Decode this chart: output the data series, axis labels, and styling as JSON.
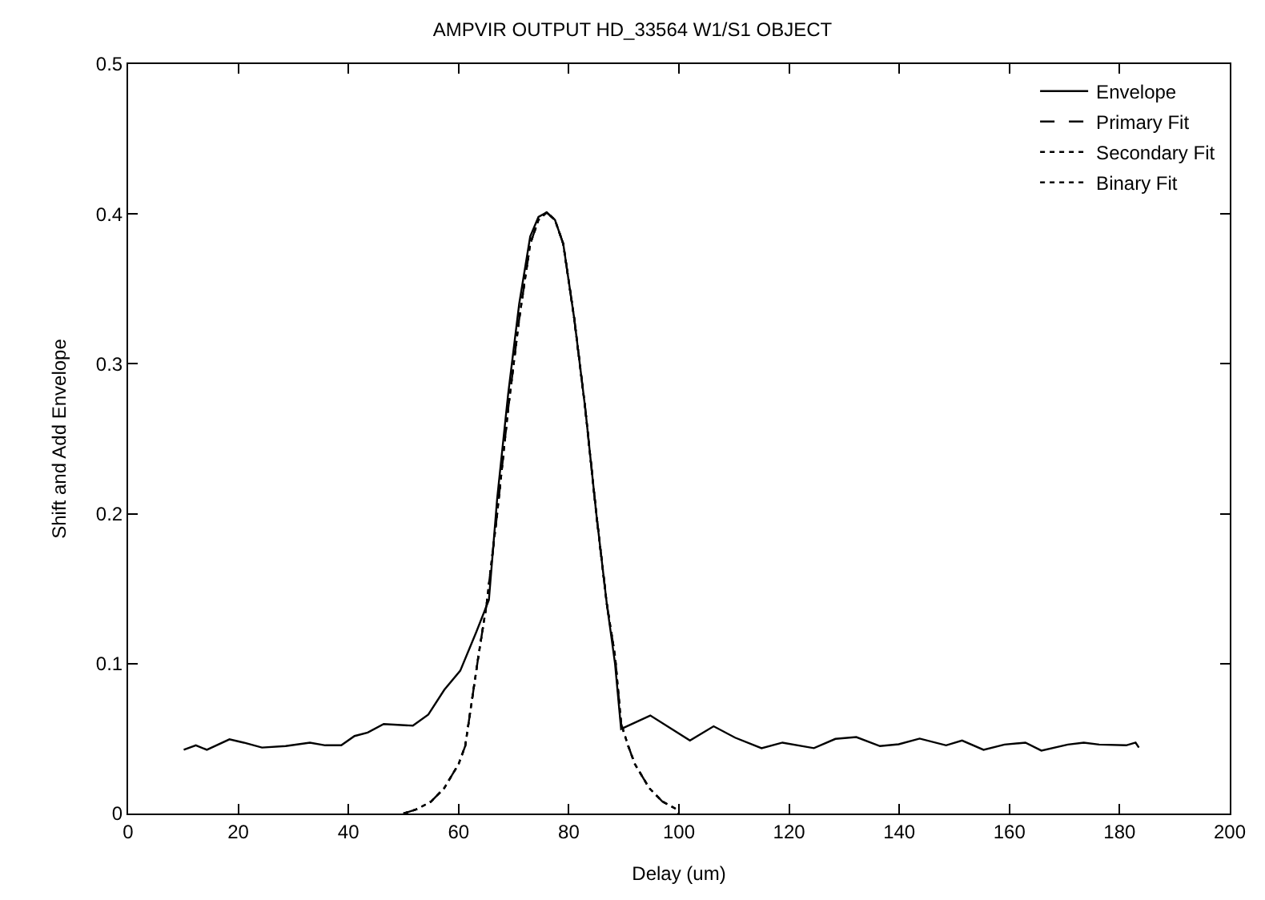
{
  "chart_data": {
    "type": "line",
    "title": "AMPVIR OUTPUT HD_33564 W1/S1 OBJECT",
    "xlabel": "Delay (um)",
    "ylabel": "Shift and Add Envelope",
    "xlim": [
      0,
      200
    ],
    "xticks": [
      0,
      20,
      40,
      60,
      80,
      100,
      120,
      140,
      160,
      180,
      200
    ],
    "ylim": [
      0,
      0.5
    ],
    "yticks": [
      0,
      0.1,
      0.2,
      0.3,
      0.4,
      0.5
    ],
    "grid": false,
    "legend": "top right",
    "marker": "none",
    "series": [
      {
        "name": "Envelope",
        "color": "#000000",
        "line_style": "solid",
        "x": [
          10.1,
          12.3,
          14.3,
          18.4,
          21,
          24.3,
          28.6,
          33,
          35.8,
          38.7,
          41.1,
          43.5,
          46.4,
          51.7,
          54.5,
          57.4,
          60.3,
          63.2,
          65.5,
          67,
          69,
          71,
          73,
          74.5,
          76,
          77.5,
          79,
          81,
          83,
          85,
          86.9,
          88.4,
          89.5,
          94.8,
          102,
          106.3,
          110.2,
          115,
          118.8,
          124.5,
          128.4,
          132.2,
          136.5,
          139.9,
          143.7,
          148.5,
          151.4,
          155.3,
          159.1,
          162.9,
          165.8,
          170.6,
          173.5,
          176.3,
          181.2,
          182.9,
          183.5
        ],
        "values": [
          0.0425,
          0.0455,
          0.0425,
          0.0495,
          0.0473,
          0.044,
          0.045,
          0.0473,
          0.0455,
          0.0455,
          0.0517,
          0.054,
          0.0597,
          0.0586,
          0.066,
          0.0825,
          0.0953,
          0.121,
          0.1425,
          0.21,
          0.28,
          0.34,
          0.385,
          0.398,
          0.401,
          0.396,
          0.38,
          0.33,
          0.27,
          0.2,
          0.14,
          0.1,
          0.0564,
          0.0654,
          0.0487,
          0.0582,
          0.0506,
          0.0436,
          0.0473,
          0.0436,
          0.0498,
          0.051,
          0.045,
          0.0462,
          0.05,
          0.0455,
          0.0487,
          0.0425,
          0.046,
          0.0473,
          0.042,
          0.046,
          0.0473,
          0.046,
          0.0455,
          0.0473,
          0.044
        ]
      },
      {
        "name": "Primary Fit",
        "color": "#000000",
        "line_style": "dashed",
        "x": [
          50,
          52.5,
          55,
          57.4,
          60,
          61.2,
          63.6,
          65.1,
          67,
          69,
          71,
          73,
          74.5,
          76,
          77.5,
          79,
          81,
          83,
          85,
          86.9,
          88.4,
          89.5,
          90.8,
          92,
          94.6,
          97,
          99.5,
          100
        ],
        "values": [
          0,
          0.003,
          0.008,
          0.017,
          0.033,
          0.045,
          0.105,
          0.14,
          0.2,
          0.27,
          0.33,
          0.38,
          0.396,
          0.401,
          0.396,
          0.38,
          0.33,
          0.27,
          0.2,
          0.14,
          0.105,
          0.06,
          0.045,
          0.033,
          0.017,
          0.008,
          0.003,
          0
        ]
      },
      {
        "name": "Secondary Fit",
        "color": "#000000",
        "line_style": "dotted",
        "x": [
          50,
          52.5,
          55,
          57.4,
          60,
          61.2,
          63.6,
          65.1,
          67,
          69,
          71,
          73,
          74.5,
          76,
          77.5,
          79,
          81,
          83,
          85,
          86.9,
          88.4,
          89.5,
          90.8,
          92,
          94.6,
          97,
          99.5,
          100
        ],
        "values": [
          0,
          0.003,
          0.008,
          0.017,
          0.033,
          0.045,
          0.105,
          0.14,
          0.2,
          0.27,
          0.33,
          0.38,
          0.396,
          0.401,
          0.396,
          0.38,
          0.33,
          0.27,
          0.2,
          0.14,
          0.105,
          0.06,
          0.045,
          0.033,
          0.017,
          0.008,
          0.003,
          0
        ]
      },
      {
        "name": "Binary Fit",
        "color": "#000000",
        "line_style": "dotted",
        "x": [
          50,
          52.5,
          55,
          57.4,
          60,
          61.2,
          63.6,
          65.1,
          67,
          69,
          71,
          73,
          74.5,
          76,
          77.5,
          79,
          81,
          83,
          85,
          86.9,
          88.4,
          89.5,
          90.8,
          92,
          94.6,
          97,
          99.5,
          100
        ],
        "values": [
          0,
          0.003,
          0.008,
          0.017,
          0.033,
          0.045,
          0.105,
          0.14,
          0.2,
          0.27,
          0.33,
          0.38,
          0.396,
          0.401,
          0.396,
          0.38,
          0.33,
          0.27,
          0.2,
          0.14,
          0.105,
          0.06,
          0.045,
          0.033,
          0.017,
          0.008,
          0.003,
          0
        ]
      }
    ]
  }
}
